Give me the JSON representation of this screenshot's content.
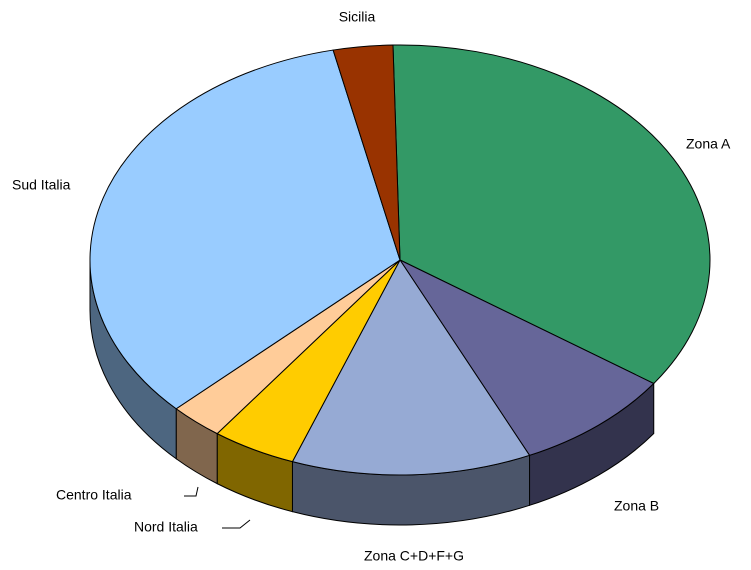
{
  "chart_data": {
    "type": "pie",
    "categories": [
      "Zona A",
      "Zona B",
      "Zona C+D+F+G",
      "Nord Italia",
      "Centro Italia",
      "Sud Italia",
      "Sicilia"
    ],
    "values": [
      35.1,
      8.4,
      12.5,
      4.4,
      2.8,
      33.7,
      3.1
    ],
    "colors": [
      "#339966",
      "#666699",
      "#96aad4",
      "#ffcc00",
      "#ffcc99",
      "#99ccff",
      "#993300"
    ]
  }
}
